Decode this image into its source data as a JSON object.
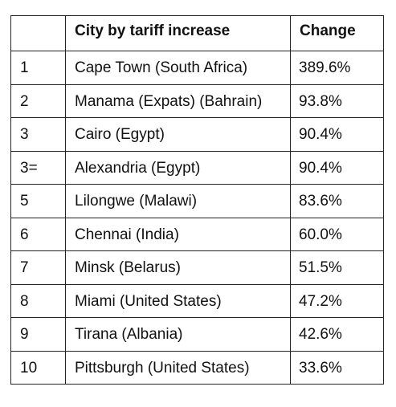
{
  "chart_data": {
    "type": "table",
    "columns": [
      "",
      "City by tariff increase",
      "Change"
    ],
    "rows": [
      {
        "rank": "1",
        "city": "Cape Town (South Africa)",
        "change": "389.6%"
      },
      {
        "rank": "2",
        "city": "Manama (Expats) (Bahrain)",
        "change": "93.8%"
      },
      {
        "rank": "3",
        "city": "Cairo (Egypt)",
        "change": "90.4%"
      },
      {
        "rank": "3=",
        "city": "Alexandria (Egypt)",
        "change": "90.4%"
      },
      {
        "rank": "5",
        "city": "Lilongwe (Malawi)",
        "change": "83.6%"
      },
      {
        "rank": "6",
        "city": "Chennai (India)",
        "change": "60.0%"
      },
      {
        "rank": "7",
        "city": "Minsk (Belarus)",
        "change": "51.5%"
      },
      {
        "rank": "8",
        "city": "Miami (United States)",
        "change": "47.2%"
      },
      {
        "rank": "9",
        "city": "Tirana (Albania)",
        "change": "42.6%"
      },
      {
        "rank": "10",
        "city": "Pittsburgh (United States)",
        "change": "33.6%"
      }
    ]
  }
}
